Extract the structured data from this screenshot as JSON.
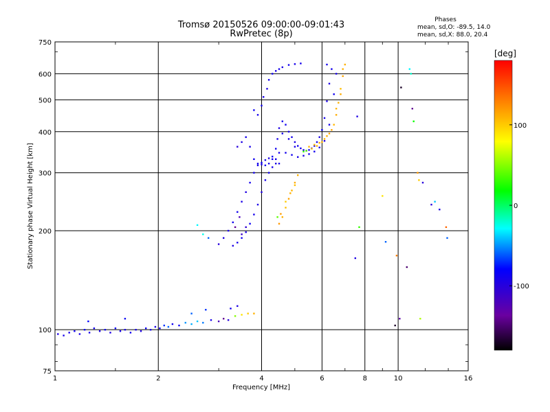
{
  "chart_data": {
    "type": "scatter",
    "title": "Tromsø 20150526 09:00:00-09:01:43",
    "subtitle": "RwPretec (8p)",
    "xlabel": "Frequency [MHz]",
    "ylabel": "Stationary phase Virtual Height [km]",
    "x_scale": "log",
    "y_scale": "log",
    "xlim": [
      1,
      16
    ],
    "ylim": [
      75,
      750
    ],
    "x_ticks": [
      1,
      2,
      4,
      6,
      8,
      10,
      16
    ],
    "x_tick_labels": [
      "1",
      "2",
      "4",
      "6",
      "8",
      "10",
      "16"
    ],
    "y_ticks": [
      75,
      100,
      200,
      300,
      400,
      500,
      600,
      750
    ],
    "y_tick_labels": [
      "75",
      "100",
      "200",
      "300",
      "400",
      "500",
      "600",
      "750"
    ],
    "grid": true,
    "stats": {
      "heading": "Phases",
      "line_o": "mean, sd,O: -89.5, 14.0",
      "line_x": "mean, sd,X:  88.0, 20.4"
    },
    "colorbar": {
      "label": "[deg]",
      "range": [
        -180,
        180
      ],
      "ticks": [
        100,
        0,
        -100
      ],
      "tick_labels": [
        "100",
        "0",
        "-100"
      ]
    },
    "series": [
      {
        "points": [
          [
            1.02,
            97,
            -95
          ],
          [
            1.06,
            96,
            -92
          ],
          [
            1.1,
            98,
            -90
          ],
          [
            1.14,
            99,
            -88
          ],
          [
            1.18,
            97,
            -94
          ],
          [
            1.22,
            100,
            -86
          ],
          [
            1.26,
            98,
            -91
          ],
          [
            1.3,
            101,
            -89
          ],
          [
            1.35,
            99,
            -93
          ],
          [
            1.4,
            100,
            -87
          ],
          [
            1.45,
            98,
            -95
          ],
          [
            1.5,
            101,
            -85
          ],
          [
            1.55,
            99,
            -90
          ],
          [
            1.6,
            100,
            -92
          ],
          [
            1.66,
            98,
            -88
          ],
          [
            1.72,
            100,
            -91
          ],
          [
            1.78,
            99,
            -94
          ],
          [
            1.84,
            101,
            -86
          ],
          [
            1.9,
            100,
            -89
          ],
          [
            1.96,
            102,
            -92
          ],
          [
            2.02,
            101,
            -90
          ],
          [
            2.08,
            103,
            -70
          ],
          [
            2.14,
            102,
            -60
          ],
          [
            2.2,
            104,
            -88
          ],
          [
            2.3,
            103,
            -85
          ],
          [
            2.4,
            105,
            -50
          ],
          [
            2.5,
            104,
            -45
          ],
          [
            2.6,
            106,
            -40
          ],
          [
            2.7,
            105,
            -55
          ],
          [
            2.85,
            107,
            -92
          ],
          [
            3.0,
            106,
            -120
          ],
          [
            3.1,
            108,
            -140
          ],
          [
            3.2,
            107,
            -100
          ],
          [
            3.35,
            110,
            50
          ],
          [
            3.5,
            111,
            90
          ],
          [
            3.65,
            112,
            100
          ],
          [
            3.8,
            112,
            110
          ],
          [
            1.25,
            106,
            -80
          ],
          [
            1.6,
            108,
            -85
          ],
          [
            2.5,
            112,
            -60
          ],
          [
            2.75,
            115,
            -70
          ],
          [
            3.25,
            116,
            -90
          ],
          [
            3.4,
            118,
            -95
          ],
          [
            3.0,
            182,
            -100
          ],
          [
            3.1,
            190,
            -95
          ],
          [
            3.2,
            200,
            -92
          ],
          [
            3.3,
            212,
            -90
          ],
          [
            3.4,
            228,
            -88
          ],
          [
            3.5,
            245,
            -93
          ],
          [
            3.6,
            262,
            -96
          ],
          [
            3.7,
            280,
            -90
          ],
          [
            3.8,
            300,
            -88
          ],
          [
            3.9,
            316,
            -92
          ],
          [
            4.0,
            322,
            -85
          ],
          [
            4.1,
            328,
            -90
          ],
          [
            4.2,
            332,
            -94
          ],
          [
            4.3,
            336,
            -88
          ],
          [
            4.4,
            330,
            -90
          ],
          [
            4.5,
            320,
            -93
          ],
          [
            3.3,
            180,
            -95
          ],
          [
            3.4,
            184,
            -90
          ],
          [
            3.5,
            190,
            -88
          ],
          [
            3.6,
            198,
            -92
          ],
          [
            3.7,
            210,
            -85
          ],
          [
            3.8,
            224,
            -90
          ],
          [
            3.9,
            240,
            -93
          ],
          [
            4.0,
            262,
            -96
          ],
          [
            4.1,
            285,
            -90
          ],
          [
            4.2,
            300,
            -88
          ],
          [
            4.3,
            312,
            -92
          ],
          [
            4.4,
            320,
            -95
          ],
          [
            3.5,
            195,
            -110
          ],
          [
            3.6,
            205,
            -105
          ],
          [
            3.45,
            220,
            -120
          ],
          [
            3.35,
            205,
            -140
          ],
          [
            3.4,
            360,
            -100
          ],
          [
            3.5,
            372,
            -95
          ],
          [
            3.6,
            385,
            -90
          ],
          [
            3.7,
            360,
            -92
          ],
          [
            3.8,
            330,
            -88
          ],
          [
            3.9,
            320,
            -90
          ],
          [
            4.0,
            318,
            -94
          ],
          [
            4.1,
            316,
            -88
          ],
          [
            4.2,
            320,
            -92
          ],
          [
            4.3,
            330,
            -90
          ],
          [
            4.4,
            355,
            -88
          ],
          [
            4.45,
            380,
            -92
          ],
          [
            4.5,
            410,
            -95
          ],
          [
            4.6,
            430,
            -90
          ],
          [
            4.7,
            420,
            -88
          ],
          [
            4.8,
            400,
            -92
          ],
          [
            4.9,
            385,
            -90
          ],
          [
            5.0,
            372,
            -94
          ],
          [
            5.1,
            362,
            -88
          ],
          [
            5.2,
            356,
            -90
          ],
          [
            5.3,
            352,
            -92
          ],
          [
            5.4,
            350,
            -95
          ],
          [
            5.5,
            352,
            -90
          ],
          [
            5.6,
            356,
            -88
          ],
          [
            5.7,
            362,
            -92
          ],
          [
            5.8,
            372,
            -90
          ],
          [
            5.9,
            385,
            -94
          ],
          [
            6.0,
            405,
            -88
          ],
          [
            6.1,
            440,
            -90
          ],
          [
            6.2,
            495,
            -92
          ],
          [
            6.3,
            560,
            -95
          ],
          [
            6.4,
            620,
            -90
          ],
          [
            4.5,
            345,
            -92
          ],
          [
            4.7,
            345,
            -90
          ],
          [
            4.9,
            340,
            -88
          ],
          [
            5.1,
            335,
            -92
          ],
          [
            5.3,
            338,
            -94
          ],
          [
            5.5,
            342,
            -90
          ],
          [
            5.7,
            348,
            -88
          ],
          [
            5.9,
            358,
            -92
          ],
          [
            6.1,
            375,
            -95
          ],
          [
            6.3,
            420,
            -90
          ],
          [
            6.5,
            520,
            -88
          ],
          [
            6.6,
            600,
            -92
          ],
          [
            4.6,
            395,
            -90
          ],
          [
            4.8,
            380,
            -94
          ],
          [
            5.0,
            360,
            -92
          ],
          [
            6.2,
            640,
            -90
          ],
          [
            3.9,
            450,
            -90
          ],
          [
            4.0,
            480,
            -88
          ],
          [
            4.05,
            510,
            -92
          ],
          [
            4.15,
            540,
            -95
          ],
          [
            4.2,
            575,
            -90
          ],
          [
            4.3,
            600,
            -88
          ],
          [
            4.4,
            612,
            -92
          ],
          [
            4.5,
            620,
            -90
          ],
          [
            4.6,
            628,
            -94
          ],
          [
            4.8,
            638,
            -88
          ],
          [
            5.0,
            642,
            -92
          ],
          [
            5.2,
            645,
            -90
          ],
          [
            3.8,
            465,
            -85
          ],
          [
            2.6,
            208,
            -30
          ],
          [
            2.7,
            195,
            -25
          ],
          [
            2.8,
            190,
            -60
          ],
          [
            4.5,
            210,
            120
          ],
          [
            4.6,
            220,
            110
          ],
          [
            4.7,
            235,
            105
          ],
          [
            4.8,
            250,
            115
          ],
          [
            4.9,
            265,
            108
          ],
          [
            5.0,
            280,
            112
          ],
          [
            5.1,
            295,
            110
          ],
          [
            4.55,
            225,
            118
          ],
          [
            4.7,
            245,
            100
          ],
          [
            4.85,
            260,
            110
          ],
          [
            5.0,
            275,
            105
          ],
          [
            4.45,
            220,
            40
          ],
          [
            5.5,
            360,
            110
          ],
          [
            5.7,
            365,
            108
          ],
          [
            5.9,
            370,
            112
          ],
          [
            6.1,
            380,
            110
          ],
          [
            6.3,
            395,
            115
          ],
          [
            6.5,
            420,
            108
          ],
          [
            6.6,
            450,
            112
          ],
          [
            6.7,
            490,
            110
          ],
          [
            6.8,
            540,
            105
          ],
          [
            6.9,
            590,
            115
          ],
          [
            7.0,
            640,
            110
          ],
          [
            5.6,
            355,
            100
          ],
          [
            5.8,
            362,
            112
          ],
          [
            6.0,
            372,
            108
          ],
          [
            6.2,
            388,
            110
          ],
          [
            6.4,
            405,
            115
          ],
          [
            6.6,
            470,
            108
          ],
          [
            6.8,
            520,
            112
          ],
          [
            6.9,
            620,
            110
          ],
          [
            5.4,
            350,
            40
          ],
          [
            5.3,
            348,
            30
          ],
          [
            7.6,
            445,
            -95
          ],
          [
            7.5,
            165,
            -95
          ],
          [
            7.7,
            205,
            30
          ],
          [
            9.0,
            255,
            90
          ],
          [
            9.2,
            185,
            -60
          ],
          [
            9.9,
            168,
            130
          ],
          [
            9.8,
            103,
            -170
          ],
          [
            10.1,
            108,
            -130
          ],
          [
            10.2,
            545,
            -170
          ],
          [
            10.6,
            155,
            -150
          ],
          [
            10.8,
            620,
            -30
          ],
          [
            10.9,
            600,
            -20
          ],
          [
            11.0,
            470,
            -140
          ],
          [
            11.1,
            430,
            20
          ],
          [
            11.4,
            300,
            120
          ],
          [
            11.5,
            285,
            100
          ],
          [
            11.6,
            108,
            60
          ],
          [
            11.8,
            280,
            -100
          ],
          [
            12.5,
            240,
            -100
          ],
          [
            13.2,
            232,
            -95
          ],
          [
            13.8,
            205,
            140
          ],
          [
            13.9,
            190,
            -60
          ],
          [
            12.8,
            245,
            -40
          ]
        ]
      }
    ]
  }
}
